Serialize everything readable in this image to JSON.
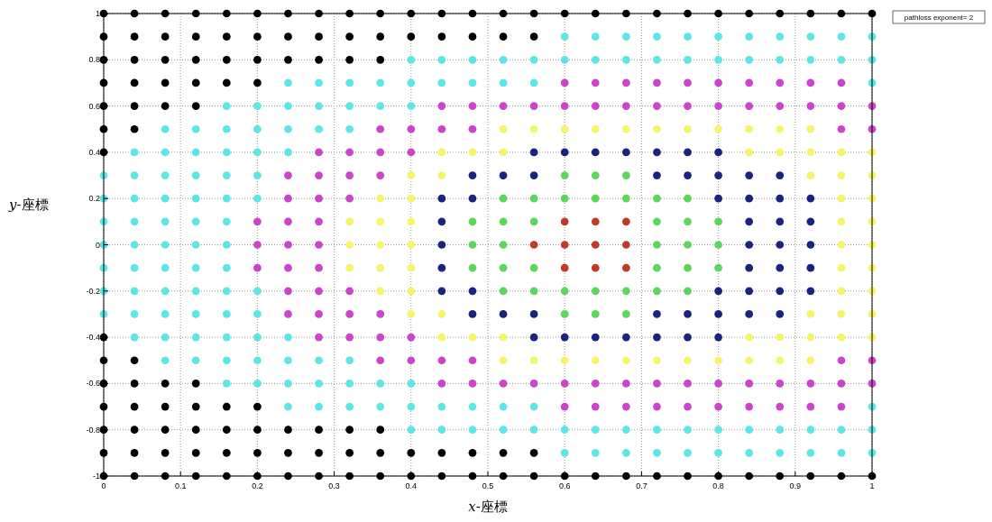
{
  "chart_data": {
    "type": "scatter",
    "xlabel": "x-座標",
    "ylabel": "y-座標",
    "xlim": [
      0,
      1
    ],
    "ylim": [
      -1,
      1
    ],
    "xticks": [
      0,
      0.1,
      0.2,
      0.3,
      0.4,
      0.5,
      0.6,
      0.7,
      0.8,
      0.9,
      1
    ],
    "yticks": [
      -1,
      -0.8,
      -0.6,
      -0.4,
      -0.2,
      0,
      0.2,
      0.4,
      0.6,
      0.8,
      1
    ],
    "grid": true,
    "marker": "circle",
    "annotations": [
      "pathloss exponent= 2"
    ],
    "series": [
      {
        "color": "#000000",
        "x": [
          0,
          0,
          0,
          0,
          0,
          0,
          0,
          0,
          0,
          0,
          0,
          0,
          0,
          0,
          0.04,
          0.04,
          0.04,
          0.04,
          0.04,
          0.04,
          0.04,
          0.04,
          0.04,
          0.04,
          0.04,
          0.04,
          0.08,
          0.08,
          0.08,
          0.08,
          0.08,
          0.08,
          0.08,
          0.08,
          0.08,
          0.08,
          0.12,
          0.12,
          0.12,
          0.12,
          0.12,
          0.12,
          0.12,
          0.12,
          0.12,
          0.12,
          0.16,
          0.16,
          0.16,
          0.16,
          0.16,
          0.16,
          0.16,
          0.16,
          0.2,
          0.2,
          0.2,
          0.2,
          0.2,
          0.2,
          0.2,
          0.2,
          0.24,
          0.24,
          0.24,
          0.24,
          0.24,
          0.24,
          0.28,
          0.28,
          0.28,
          0.28,
          0.28,
          0.28,
          0.32,
          0.32,
          0.32,
          0.32,
          0.32,
          0.32,
          0.36,
          0.36,
          0.36,
          0.36,
          0.36,
          0.36,
          0.4,
          0.4,
          0.4,
          0.4,
          0.44,
          0.44,
          0.44,
          0.44,
          0.48,
          0.48,
          0.48,
          0.48,
          0.52,
          0.52,
          0.52,
          0.52,
          0.56,
          0.56,
          0.56,
          0.56,
          0.6,
          0.6,
          0.64,
          0.64,
          0.68,
          0.68,
          0.72,
          0.72,
          0.76,
          0.76,
          0.8,
          0.8,
          0.84,
          0.84,
          0.88,
          0.88,
          0.92,
          0.92,
          0.96,
          0.96,
          1,
          1
        ],
        "values": [
          -1,
          -0.9,
          -0.8,
          -0.7,
          -0.6,
          -0.5,
          -0.4,
          0.4,
          0.5,
          0.6,
          0.7,
          0.8,
          0.9,
          1,
          -1,
          -0.9,
          -0.8,
          -0.7,
          -0.6,
          -0.5,
          0.5,
          0.6,
          0.7,
          0.8,
          0.9,
          1,
          -1,
          -0.9,
          -0.8,
          -0.7,
          -0.6,
          0.6,
          0.7,
          0.8,
          0.9,
          1,
          -1,
          -0.9,
          -0.8,
          -0.7,
          -0.6,
          0.6,
          0.7,
          0.8,
          0.9,
          1,
          -1,
          -0.9,
          -0.8,
          -0.7,
          0.7,
          0.8,
          0.9,
          1,
          -1,
          -0.9,
          -0.8,
          -0.7,
          0.7,
          0.8,
          0.9,
          1,
          -1,
          -0.9,
          -0.8,
          0.8,
          0.9,
          1,
          -1,
          -0.9,
          -0.8,
          0.8,
          0.9,
          1,
          -1,
          -0.9,
          -0.8,
          0.8,
          0.9,
          1,
          -1,
          -0.9,
          -0.8,
          0.8,
          0.9,
          1,
          -1,
          -0.9,
          0.9,
          1,
          -1,
          -0.9,
          0.9,
          1,
          -1,
          -0.9,
          0.9,
          1,
          -1,
          -0.9,
          0.9,
          1,
          -1,
          -0.9,
          0.9,
          1,
          -1,
          1,
          -1,
          1,
          -1,
          1,
          -1,
          1,
          -1,
          1,
          -1,
          1,
          -1,
          1,
          -1,
          1,
          -1,
          1,
          -1,
          1,
          -1,
          1
        ]
      },
      {
        "color": "#5ee6e6",
        "x": [
          0,
          0,
          0,
          0,
          0,
          0,
          0,
          0.04,
          0.04,
          0.04,
          0.04,
          0.04,
          0.04,
          0.04,
          0.04,
          0.04,
          0.08,
          0.08,
          0.08,
          0.08,
          0.08,
          0.08,
          0.08,
          0.08,
          0.08,
          0.08,
          0.08,
          0.12,
          0.12,
          0.12,
          0.12,
          0.12,
          0.12,
          0.12,
          0.12,
          0.12,
          0.12,
          0.12,
          0.16,
          0.16,
          0.16,
          0.16,
          0.16,
          0.16,
          0.16,
          0.16,
          0.16,
          0.16,
          0.16,
          0.16,
          0.16,
          0.2,
          0.2,
          0.2,
          0.2,
          0.2,
          0.2,
          0.2,
          0.2,
          0.2,
          0.2,
          0.24,
          0.24,
          0.24,
          0.24,
          0.24,
          0.24,
          0.24,
          0.24,
          0.28,
          0.28,
          0.28,
          0.28,
          0.28,
          0.28,
          0.32,
          0.32,
          0.32,
          0.32,
          0.32,
          0.32,
          0.36,
          0.36,
          0.36,
          0.36,
          0.4,
          0.4,
          0.4,
          0.4,
          0.4,
          0.4,
          0.44,
          0.44,
          0.44,
          0.44,
          0.48,
          0.48,
          0.48,
          0.48,
          0.52,
          0.52,
          0.52,
          0.52,
          0.56,
          0.56,
          0.56,
          0.56,
          0.6,
          0.6,
          0.6,
          0.6,
          0.64,
          0.64,
          0.64,
          0.64,
          0.68,
          0.68,
          0.68,
          0.68,
          0.72,
          0.72,
          0.72,
          0.72,
          0.76,
          0.76,
          0.76,
          0.76,
          0.8,
          0.8,
          0.8,
          0.8,
          0.84,
          0.84,
          0.84,
          0.84,
          0.88,
          0.88,
          0.88,
          0.88,
          0.92,
          0.92,
          0.92,
          0.92,
          0.96,
          0.96,
          0.96,
          0.96,
          1,
          1,
          1,
          1,
          1,
          1
        ],
        "values": [
          -0.3,
          -0.2,
          -0.1,
          0,
          0.1,
          0.2,
          0.3,
          -0.4,
          -0.3,
          -0.2,
          -0.1,
          0,
          0.1,
          0.2,
          0.3,
          0.4,
          -0.5,
          -0.4,
          -0.3,
          -0.2,
          -0.1,
          0,
          0.1,
          0.2,
          0.3,
          0.4,
          0.5,
          -0.5,
          -0.4,
          -0.3,
          -0.2,
          -0.1,
          0,
          0.1,
          0.2,
          0.3,
          0.4,
          0.5,
          -0.6,
          -0.5,
          -0.4,
          -0.3,
          -0.2,
          -0.1,
          0,
          0.1,
          0.2,
          0.3,
          0.4,
          0.5,
          0.6,
          -0.6,
          -0.5,
          -0.4,
          -0.3,
          -0.2,
          0.2,
          0.3,
          0.4,
          0.5,
          0.6,
          -0.7,
          -0.6,
          -0.5,
          -0.4,
          0.4,
          0.5,
          0.6,
          0.7,
          -0.7,
          -0.6,
          -0.5,
          0.5,
          0.6,
          0.7,
          -0.7,
          -0.6,
          -0.5,
          0.5,
          0.6,
          0.7,
          -0.7,
          -0.6,
          0.6,
          0.7,
          -0.8,
          -0.7,
          -0.6,
          0.6,
          0.7,
          0.8,
          -0.8,
          -0.7,
          0.7,
          0.8,
          -0.8,
          -0.7,
          0.7,
          0.8,
          -0.8,
          -0.7,
          0.7,
          0.8,
          -0.8,
          -0.7,
          0.7,
          0.8,
          -0.9,
          -0.8,
          0.8,
          0.9,
          -0.9,
          -0.8,
          0.8,
          0.9,
          -0.9,
          -0.8,
          0.8,
          0.9,
          -0.9,
          -0.8,
          0.8,
          0.9,
          -0.9,
          -0.8,
          0.8,
          0.9,
          -0.9,
          -0.8,
          0.8,
          0.9,
          -0.9,
          -0.8,
          0.8,
          0.9,
          -0.9,
          -0.8,
          0.8,
          0.9,
          -0.9,
          -0.8,
          0.8,
          0.9,
          -0.9,
          -0.8,
          0.8,
          0.9,
          -0.9,
          -0.8,
          -0.7,
          0.7,
          0.8,
          0.9
        ]
      },
      {
        "color": "#cc44cc",
        "x": [
          0.2,
          0.2,
          0.2,
          0.24,
          0.24,
          0.24,
          0.24,
          0.24,
          0.24,
          0.24,
          0.28,
          0.28,
          0.28,
          0.28,
          0.28,
          0.28,
          0.28,
          0.28,
          0.28,
          0.32,
          0.32,
          0.32,
          0.32,
          0.32,
          0.32,
          0.36,
          0.36,
          0.36,
          0.36,
          0.36,
          0.36,
          0.4,
          0.4,
          0.4,
          0.4,
          0.44,
          0.44,
          0.44,
          0.44,
          0.48,
          0.48,
          0.48,
          0.48,
          0.52,
          0.52,
          0.56,
          0.56,
          0.6,
          0.6,
          0.6,
          0.6,
          0.64,
          0.64,
          0.64,
          0.64,
          0.68,
          0.68,
          0.68,
          0.68,
          0.72,
          0.72,
          0.72,
          0.72,
          0.76,
          0.76,
          0.76,
          0.76,
          0.8,
          0.8,
          0.8,
          0.8,
          0.84,
          0.84,
          0.84,
          0.84,
          0.88,
          0.88,
          0.88,
          0.88,
          0.92,
          0.92,
          0.92,
          0.92,
          0.96,
          0.96,
          0.96,
          0.96,
          0.96,
          0.96,
          1,
          1,
          1,
          1
        ],
        "values": [
          -0.1,
          0,
          0.1,
          -0.3,
          -0.2,
          -0.1,
          0,
          0.1,
          0.2,
          0.3,
          -0.4,
          -0.3,
          -0.2,
          -0.1,
          0,
          0.1,
          0.2,
          0.3,
          0.4,
          -0.4,
          -0.3,
          -0.2,
          0.2,
          0.3,
          0.4,
          -0.5,
          -0.4,
          -0.3,
          0.3,
          0.4,
          0.5,
          -0.5,
          -0.4,
          0.4,
          0.5,
          -0.6,
          -0.5,
          0.5,
          0.6,
          -0.6,
          -0.5,
          0.5,
          0.6,
          -0.6,
          0.6,
          -0.6,
          0.6,
          -0.7,
          -0.6,
          0.6,
          0.7,
          -0.7,
          -0.6,
          0.6,
          0.7,
          -0.7,
          -0.6,
          0.6,
          0.7,
          -0.7,
          -0.6,
          0.6,
          0.7,
          -0.7,
          -0.6,
          0.6,
          0.7,
          -0.7,
          -0.6,
          0.6,
          0.7,
          -0.7,
          -0.6,
          0.6,
          0.7,
          -0.7,
          -0.6,
          0.6,
          0.7,
          -0.7,
          -0.6,
          0.6,
          0.7,
          -0.7,
          -0.6,
          -0.5,
          0.5,
          0.6,
          0.7,
          -0.6,
          -0.5,
          0.5,
          0.6
        ]
      },
      {
        "color": "#f5f56a",
        "x": [
          0.32,
          0.32,
          0.32,
          0.36,
          0.36,
          0.36,
          0.36,
          0.36,
          0.4,
          0.4,
          0.4,
          0.4,
          0.4,
          0.4,
          0.4,
          0.44,
          0.44,
          0.44,
          0.44,
          0.48,
          0.48,
          0.52,
          0.52,
          0.52,
          0.52,
          0.56,
          0.56,
          0.6,
          0.6,
          0.64,
          0.64,
          0.68,
          0.68,
          0.72,
          0.72,
          0.76,
          0.76,
          0.8,
          0.8,
          0.84,
          0.84,
          0.84,
          0.84,
          0.88,
          0.88,
          0.88,
          0.88,
          0.92,
          0.92,
          0.92,
          0.92,
          0.92,
          0.92,
          0.96,
          0.96,
          0.96,
          0.96,
          0.96,
          0.96,
          0.96,
          0.96,
          0.96,
          1,
          1,
          1,
          1,
          1,
          1,
          1,
          1,
          1
        ],
        "values": [
          -0.1,
          0,
          0.1,
          -0.2,
          -0.1,
          0,
          0.1,
          0.2,
          -0.3,
          -0.2,
          -0.1,
          0,
          0.1,
          0.2,
          0.3,
          -0.4,
          -0.3,
          0.3,
          0.4,
          -0.4,
          0.4,
          -0.5,
          -0.4,
          0.4,
          0.5,
          -0.5,
          0.5,
          -0.5,
          0.5,
          -0.5,
          0.5,
          -0.5,
          0.5,
          -0.5,
          0.5,
          -0.5,
          0.5,
          -0.5,
          0.5,
          -0.5,
          -0.4,
          0.4,
          0.5,
          -0.5,
          -0.4,
          0.4,
          0.5,
          -0.5,
          -0.4,
          -0.3,
          0.3,
          0.4,
          0.5,
          -0.4,
          -0.3,
          -0.2,
          -0.1,
          0,
          0.1,
          0.2,
          0.3,
          0.4,
          -0.4,
          -0.3,
          -0.2,
          -0.1,
          0,
          0.1,
          0.2,
          0.3,
          0.4
        ]
      },
      {
        "color": "#1a237e",
        "x": [
          0.44,
          0.44,
          0.44,
          0.44,
          0.44,
          0.48,
          0.48,
          0.48,
          0.48,
          0.52,
          0.52,
          0.56,
          0.56,
          0.56,
          0.56,
          0.6,
          0.6,
          0.64,
          0.64,
          0.68,
          0.68,
          0.72,
          0.72,
          0.72,
          0.72,
          0.76,
          0.76,
          0.76,
          0.76,
          0.8,
          0.8,
          0.8,
          0.8,
          0.8,
          0.8,
          0.84,
          0.84,
          0.84,
          0.84,
          0.84,
          0.84,
          0.84,
          0.88,
          0.88,
          0.88,
          0.88,
          0.88,
          0.88,
          0.88,
          0.92,
          0.92,
          0.92,
          0.92,
          0.92
        ],
        "values": [
          -0.2,
          -0.1,
          0,
          0.1,
          0.2,
          -0.3,
          -0.2,
          0.2,
          0.3,
          -0.3,
          0.3,
          -0.4,
          -0.3,
          0.3,
          0.4,
          -0.4,
          0.4,
          -0.4,
          0.4,
          -0.4,
          0.4,
          -0.4,
          -0.3,
          0.3,
          0.4,
          -0.4,
          -0.3,
          0.3,
          0.4,
          -0.4,
          -0.3,
          -0.2,
          0.2,
          0.3,
          0.4,
          -0.3,
          -0.2,
          -0.1,
          0,
          0.1,
          0.2,
          0.3,
          -0.3,
          -0.2,
          -0.1,
          0,
          0.1,
          0.2,
          0.3,
          -0.2,
          -0.1,
          0,
          0.1,
          0.2
        ]
      },
      {
        "color": "#5cd65c",
        "x": [
          0.48,
          0.48,
          0.48,
          0.52,
          0.52,
          0.52,
          0.52,
          0.52,
          0.56,
          0.56,
          0.56,
          0.56,
          0.6,
          0.6,
          0.6,
          0.6,
          0.64,
          0.64,
          0.64,
          0.64,
          0.68,
          0.68,
          0.68,
          0.68,
          0.72,
          0.72,
          0.72,
          0.72,
          0.72,
          0.76,
          0.76,
          0.76,
          0.76,
          0.76,
          0.8,
          0.8,
          0.8
        ],
        "values": [
          -0.1,
          0,
          0.1,
          -0.2,
          -0.1,
          0,
          0.1,
          0.2,
          -0.2,
          -0.1,
          0.1,
          0.2,
          -0.3,
          -0.2,
          0.2,
          0.3,
          -0.3,
          -0.2,
          0.2,
          0.3,
          -0.3,
          -0.2,
          0.2,
          0.3,
          -0.2,
          -0.1,
          0,
          0.1,
          0.2,
          -0.2,
          -0.1,
          0,
          0.1,
          0.2,
          -0.1,
          0,
          0.1
        ]
      },
      {
        "color": "#c0392b",
        "x": [
          0.56,
          0.6,
          0.6,
          0.6,
          0.64,
          0.64,
          0.64,
          0.68,
          0.68,
          0.68
        ],
        "values": [
          0,
          -0.1,
          0,
          0.1,
          -0.1,
          0,
          0.1,
          -0.1,
          0,
          0.1
        ]
      }
    ]
  }
}
